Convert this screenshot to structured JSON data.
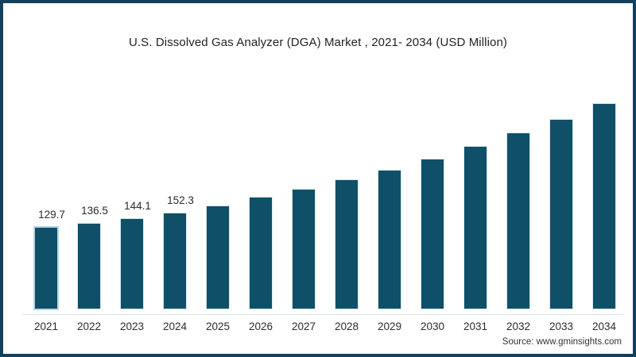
{
  "chart_data": {
    "type": "bar",
    "title": "U.S. Dissolved Gas Analyzer (DGA) Market , 2021- 2034 (USD Million)",
    "categories": [
      "2021",
      "2022",
      "2023",
      "2024",
      "2025",
      "2026",
      "2027",
      "2028",
      "2029",
      "2030",
      "2031",
      "2032",
      "2033",
      "2034"
    ],
    "values": [
      129.7,
      136.5,
      144.1,
      152.3,
      164.3,
      178.0,
      191.5,
      206.0,
      222.0,
      239.1,
      259.5,
      281.5,
      302.8,
      329.1
    ],
    "data_labels": [
      "129.7",
      "136.5",
      "144.1",
      "152.3",
      "",
      "",
      "",
      "",
      "",
      "",
      "",
      "",
      "",
      ""
    ],
    "xlabel": "",
    "ylabel": "",
    "ylim": [
      0,
      370
    ],
    "grid": false,
    "legend": "none",
    "bar_color": "#0f5068",
    "bar_highlight_stroke": "#b3d9e9",
    "axis_line_color": "#dde3e7",
    "frame_border_color": "#12415f",
    "background": "#ffffff"
  },
  "source": "Source: www.gminsights.com"
}
